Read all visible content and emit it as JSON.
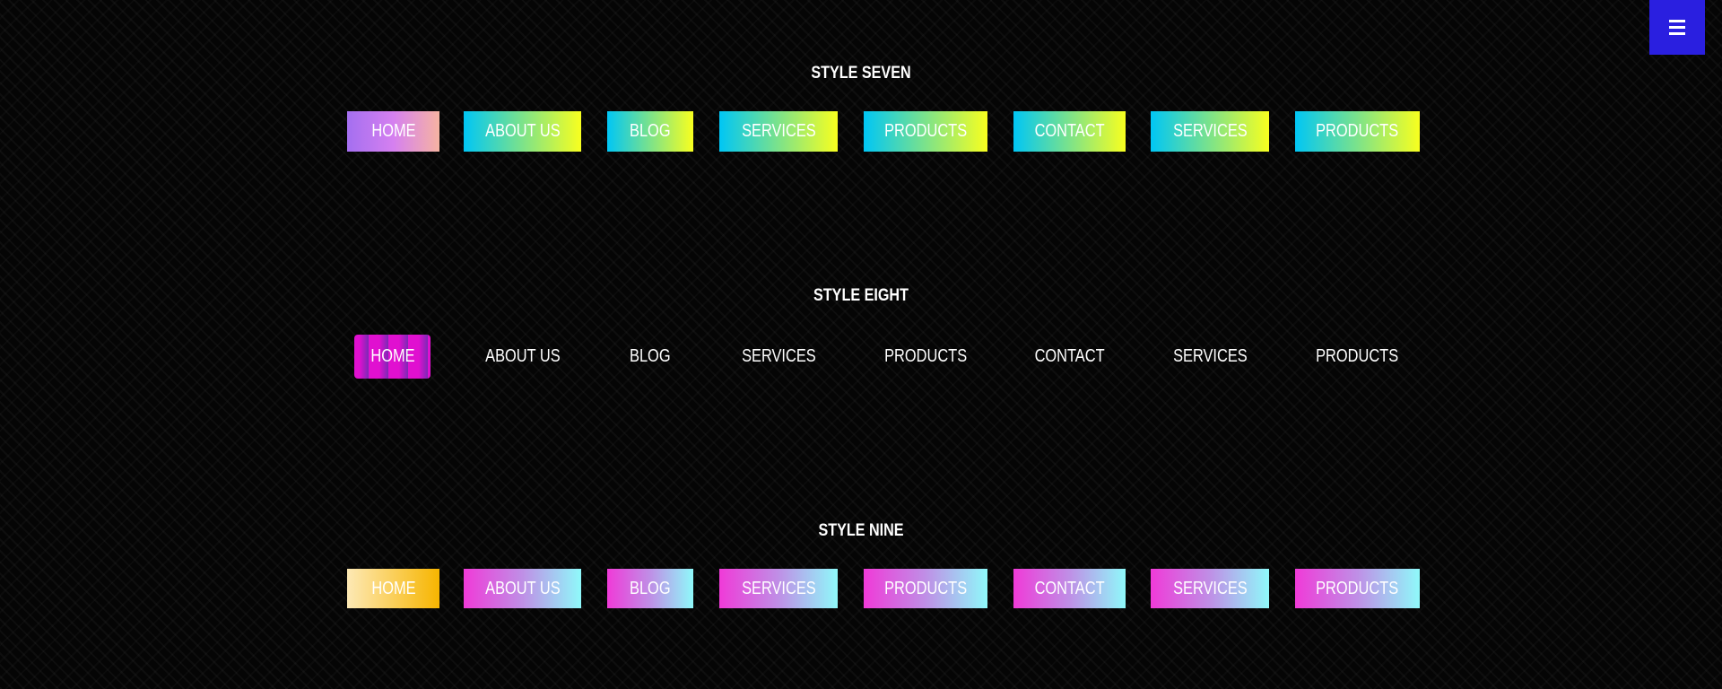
{
  "menu_button": {
    "icon": "hamburger-icon",
    "color": "#2a1fe0"
  },
  "sections": [
    {
      "title": "STYLE SEVEN",
      "active_index": 0,
      "items": [
        "HOME",
        "ABOUT US",
        "BLOG",
        "SERVICES",
        "PRODUCTS",
        "CONTACT",
        "SERVICES",
        "PRODUCTS"
      ]
    },
    {
      "title": "STYLE EIGHT",
      "active_index": 0,
      "items": [
        "HOME",
        "ABOUT US",
        "BLOG",
        "SERVICES",
        "PRODUCTS",
        "CONTACT",
        "SERVICES",
        "PRODUCTS"
      ]
    },
    {
      "title": "STYLE NINE",
      "active_index": 0,
      "items": [
        "HOME",
        "ABOUT US",
        "BLOG",
        "SERVICES",
        "PRODUCTS",
        "CONTACT",
        "SERVICES",
        "PRODUCTS"
      ]
    }
  ]
}
